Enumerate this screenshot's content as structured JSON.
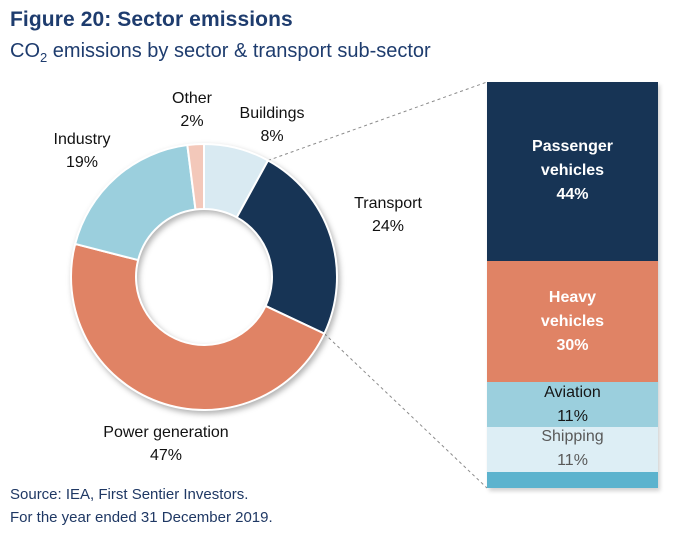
{
  "header": {
    "title": "Figure 20: Sector emissions",
    "subtitle_prefix": "CO",
    "subtitle_sub": "2",
    "subtitle_rest": " emissions by sector & transport sub-sector"
  },
  "chart_data": {
    "type": "pie",
    "title": "Figure 20: Sector emissions",
    "subtitle": "CO2 emissions by sector & transport sub-sector",
    "donut": {
      "note": "Donut chart, slices clockwise from 12 o'clock",
      "start_angle_deg": 0,
      "segments": [
        {
          "label": "Buildings",
          "value": 8,
          "pct_label": "8%",
          "color": "#d9eaf2"
        },
        {
          "label": "Transport",
          "value": 24,
          "pct_label": "24%",
          "color": "#173455"
        },
        {
          "label": "Power generation",
          "value": 47,
          "pct_label": "47%",
          "color": "#e08365"
        },
        {
          "label": "Industry",
          "value": 19,
          "pct_label": "19%",
          "color": "#9bcfdd"
        },
        {
          "label": "Other",
          "value": 2,
          "pct_label": "2%",
          "color": "#f3c8ba"
        }
      ]
    },
    "bar": {
      "note": "Stacked column showing transport sub-sector breakdown",
      "segments": [
        {
          "label": "Passenger vehicles",
          "value": 44,
          "pct_label": "44%",
          "color": "#173455",
          "text_color": "#ffffff",
          "bold": true
        },
        {
          "label": "Heavy vehicles",
          "value": 30,
          "pct_label": "30%",
          "color": "#e08365",
          "text_color": "#ffffff",
          "bold": true
        },
        {
          "label": "Aviation",
          "value": 11,
          "pct_label": "11%",
          "color": "#9bcfdd",
          "text_color": "#161616",
          "bold": false
        },
        {
          "label": "Shipping",
          "value": 11,
          "pct_label": "11%",
          "color": "#ddeef5",
          "text_color": "#595959",
          "bold": false
        },
        {
          "label": "",
          "value": 4,
          "pct_label": "",
          "color": "#5cb3ce",
          "text_color": "",
          "bold": false
        }
      ]
    },
    "colors": {
      "title_navy": "#1e3c6e",
      "source_navy": "#1f3864",
      "callout_line": "#8c8c8c"
    }
  },
  "source": {
    "line1": "Source: IEA, First Sentier Investors.",
    "line2": "For the year ended 31 December 2019."
  }
}
